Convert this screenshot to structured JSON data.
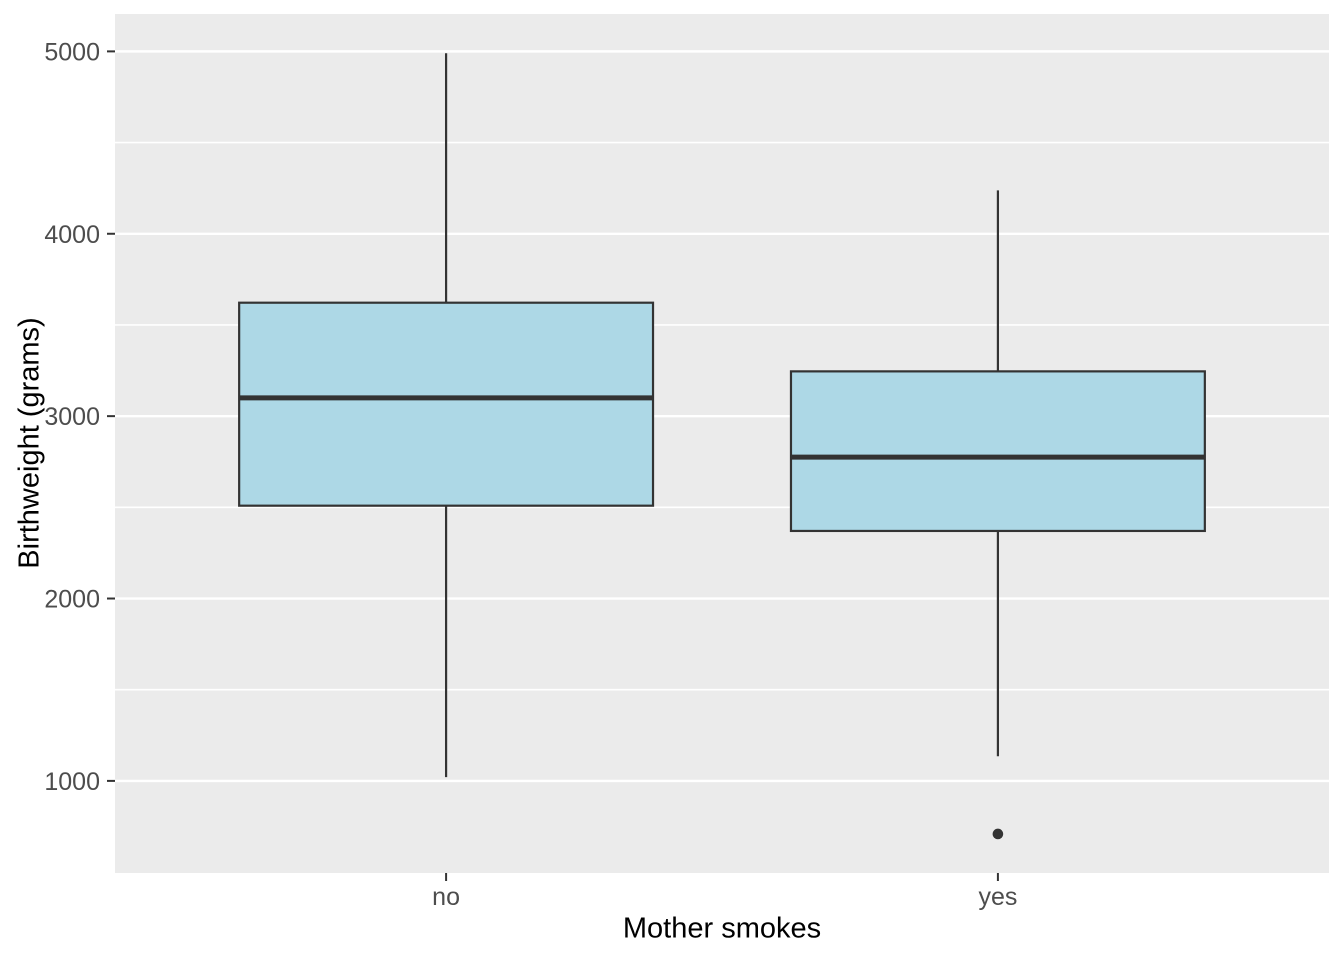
{
  "chart_data": {
    "type": "boxplot",
    "title": "",
    "xlabel": "Mother smokes",
    "ylabel": "Birthweight (grams)",
    "categories": [
      "no",
      "yes"
    ],
    "series": [
      {
        "name": "no",
        "lower_whisker": 1021,
        "q1": 2509,
        "median": 3100,
        "q3": 3622,
        "upper_whisker": 4990,
        "outliers": []
      },
      {
        "name": "yes",
        "lower_whisker": 1135,
        "q1": 2370.5,
        "median": 2775.5,
        "q3": 3245.5,
        "upper_whisker": 4238,
        "outliers": [
          709
        ]
      }
    ],
    "y_ticks": [
      1000,
      2000,
      3000,
      4000,
      5000
    ],
    "y_minor_gridlines": [
      1500,
      2500,
      3500,
      4500
    ],
    "ylim": [
      495,
      5205
    ],
    "grid": true,
    "legend_position": "none",
    "colors": {
      "background": "#FFFFFF",
      "panel_bg": "#EBEBEB",
      "grid_major": "#FFFFFF",
      "grid_minor": "#FFFFFF",
      "box_fill": "#ADD8E6",
      "box_stroke": "#333333",
      "median_stroke": "#333333",
      "outlier": "#333333",
      "tick_mark": "#333333",
      "tick_label": "#4D4D4D",
      "axis_title": "#000000"
    }
  }
}
